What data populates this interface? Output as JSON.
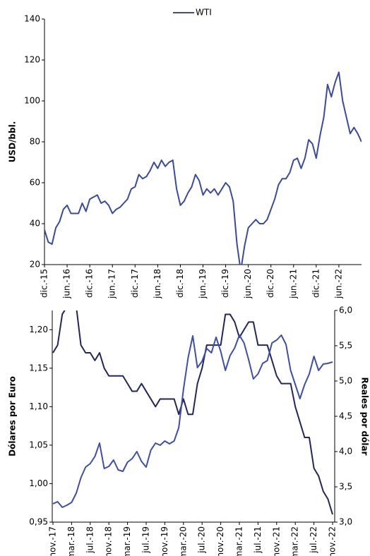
{
  "chart_data": [
    {
      "type": "line",
      "categories": [
        "dic.-15",
        null,
        null,
        null,
        null,
        null,
        "jun.-16",
        null,
        null,
        null,
        null,
        null,
        "dic.-16",
        null,
        null,
        null,
        null,
        null,
        "jun.-17",
        null,
        null,
        null,
        null,
        null,
        "dic.-17",
        null,
        null,
        null,
        null,
        null,
        "jun.-18",
        null,
        null,
        null,
        null,
        null,
        "dic.-18",
        null,
        null,
        null,
        null,
        null,
        "jun.-19",
        null,
        null,
        null,
        null,
        null,
        "dic.-19",
        null,
        null,
        null,
        null,
        null,
        "jun.-20",
        null,
        null,
        null,
        null,
        null,
        "dic.-20",
        null,
        null,
        null,
        null,
        null,
        "jun.-21",
        null,
        null,
        null,
        null,
        null,
        "dic.-21",
        null,
        null,
        null,
        null,
        null,
        "jun.-22",
        null,
        null,
        null,
        null,
        null,
        null
      ],
      "series": [
        {
          "name": "WTI",
          "color": "#3a4a9f",
          "values": [
            37,
            31,
            30,
            38,
            41,
            47,
            49,
            45,
            45,
            45,
            50,
            46,
            52,
            53,
            54,
            50,
            51,
            49,
            45,
            47,
            48,
            50,
            52,
            57,
            58,
            64,
            62,
            63,
            66,
            70,
            67,
            71,
            68,
            70,
            71,
            57,
            49,
            51,
            55,
            58,
            64,
            61,
            54,
            57,
            55,
            57,
            54,
            57,
            60,
            58,
            51,
            30,
            17,
            29,
            38,
            40,
            42,
            40,
            40,
            42,
            47,
            52,
            59,
            62,
            62,
            65,
            71,
            72,
            67,
            72,
            81,
            79,
            72,
            83,
            92,
            108,
            102,
            109,
            114,
            100,
            92,
            84,
            87,
            84,
            80
          ]
        }
      ],
      "ylim": [
        20,
        140
      ],
      "yticks": [
        20,
        40,
        60,
        80,
        100,
        120,
        140
      ],
      "y_label": "USD/bbl.",
      "legend": "top"
    },
    {
      "type": "line",
      "categories": [
        "nov.-17",
        null,
        null,
        null,
        "mar.-18",
        null,
        null,
        null,
        "jul.-18",
        null,
        null,
        null,
        "nov.-18",
        null,
        null,
        null,
        "mar.-19",
        null,
        null,
        null,
        "jul.-19",
        null,
        null,
        null,
        "nov.-19",
        null,
        null,
        null,
        "mar.-20",
        null,
        null,
        null,
        "jul.-20",
        null,
        null,
        null,
        "nov.-20",
        null,
        null,
        null,
        "mar.-21",
        null,
        null,
        null,
        "jul.-21",
        null,
        null,
        null,
        "nov.-21",
        null,
        null,
        null,
        "mar.-22",
        null,
        null,
        null,
        "jul.-22",
        null,
        null,
        null,
        "nov.-22"
      ],
      "series": [
        {
          "color": "#22265a",
          "values": [
            1.17,
            1.18,
            1.22,
            1.23,
            1.23,
            1.23,
            1.18,
            1.17,
            1.17,
            1.16,
            1.17,
            1.15,
            1.14,
            1.14,
            1.14,
            1.14,
            1.13,
            1.12,
            1.12,
            1.13,
            1.12,
            1.11,
            1.1,
            1.11,
            1.11,
            1.11,
            1.11,
            1.09,
            1.11,
            1.09,
            1.09,
            1.13,
            1.15,
            1.18,
            1.18,
            1.18,
            1.18,
            1.22,
            1.22,
            1.21,
            1.19,
            1.2,
            1.21,
            1.21,
            1.18,
            1.18,
            1.18,
            1.16,
            1.14,
            1.13,
            1.13,
            1.13,
            1.1,
            1.08,
            1.06,
            1.06,
            1.02,
            1.01,
            0.99,
            0.98,
            0.96
          ]
        },
        {
          "color": "#3d4fa8",
          "axis": "y2",
          "values": [
            3.26,
            3.29,
            3.21,
            3.24,
            3.28,
            3.41,
            3.63,
            3.78,
            3.83,
            3.93,
            4.12,
            3.76,
            3.79,
            3.88,
            3.74,
            3.72,
            3.85,
            3.9,
            4.0,
            3.86,
            3.78,
            4.02,
            4.12,
            4.09,
            4.15,
            4.11,
            4.15,
            4.34,
            4.88,
            5.33,
            5.64,
            5.19,
            5.28,
            5.46,
            5.4,
            5.62,
            5.42,
            5.15,
            5.36,
            5.47,
            5.65,
            5.54,
            5.3,
            5.03,
            5.1,
            5.25,
            5.29,
            5.54,
            5.58,
            5.65,
            5.52,
            5.15,
            4.95,
            4.75,
            4.95,
            5.1,
            5.35,
            5.15,
            5.24,
            5.25,
            5.27
          ]
        }
      ],
      "ylim": [
        0.95,
        1.225
      ],
      "yticks": [
        {
          "value": 0.95,
          "label": "0,95"
        },
        {
          "value": 1.0,
          "label": "1,00"
        },
        {
          "value": 1.05,
          "label": "1,05"
        },
        {
          "value": 1.1,
          "label": "1,10"
        },
        {
          "value": 1.15,
          "label": "1,15"
        },
        {
          "value": 1.2,
          "label": "1,20"
        }
      ],
      "y2lim": [
        3.0,
        6.0
      ],
      "y2ticks": [
        {
          "value": 3.0,
          "label": "3,0"
        },
        {
          "value": 3.5,
          "label": "3,5"
        },
        {
          "value": 4.0,
          "label": "4,0"
        },
        {
          "value": 4.5,
          "label": "4,5"
        },
        {
          "value": 5.0,
          "label": "5,0"
        },
        {
          "value": 5.5,
          "label": "5,5"
        },
        {
          "value": 6.0,
          "label": "6,0"
        }
      ],
      "y_label": "Dólares por Euro",
      "y2_label": "Reales por dólar"
    }
  ]
}
